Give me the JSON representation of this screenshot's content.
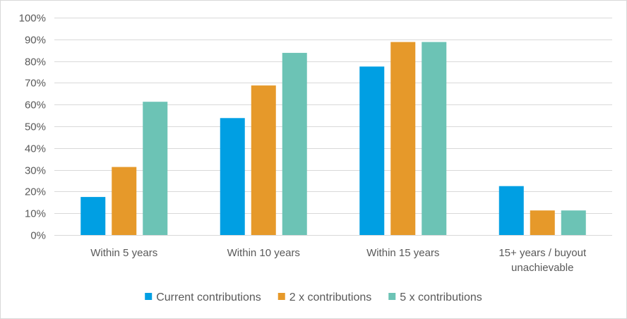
{
  "chart_data": {
    "type": "bar",
    "title": "",
    "xlabel": "",
    "ylabel": "",
    "ylim": [
      0,
      100
    ],
    "y_ticks": [
      0,
      10,
      20,
      30,
      40,
      50,
      60,
      70,
      80,
      90,
      100
    ],
    "y_tick_suffix": "%",
    "grid": true,
    "legend_position": "bottom",
    "categories": [
      [
        "Within 5 years"
      ],
      [
        "Within 10 years"
      ],
      [
        "Within 15 years"
      ],
      [
        "15+ years / buyout",
        "unachievable"
      ]
    ],
    "series": [
      {
        "name": "Current contributions",
        "color": "#009fe3",
        "values": [
          17.5,
          53.8,
          77.5,
          22.5
        ]
      },
      {
        "name": "2 x contributions",
        "color": "#e6992a",
        "values": [
          31.3,
          68.8,
          88.8,
          11.3
        ]
      },
      {
        "name": "5 x contributions",
        "color": "#6cc3b5",
        "values": [
          61.3,
          83.8,
          88.8,
          11.3
        ]
      }
    ]
  }
}
